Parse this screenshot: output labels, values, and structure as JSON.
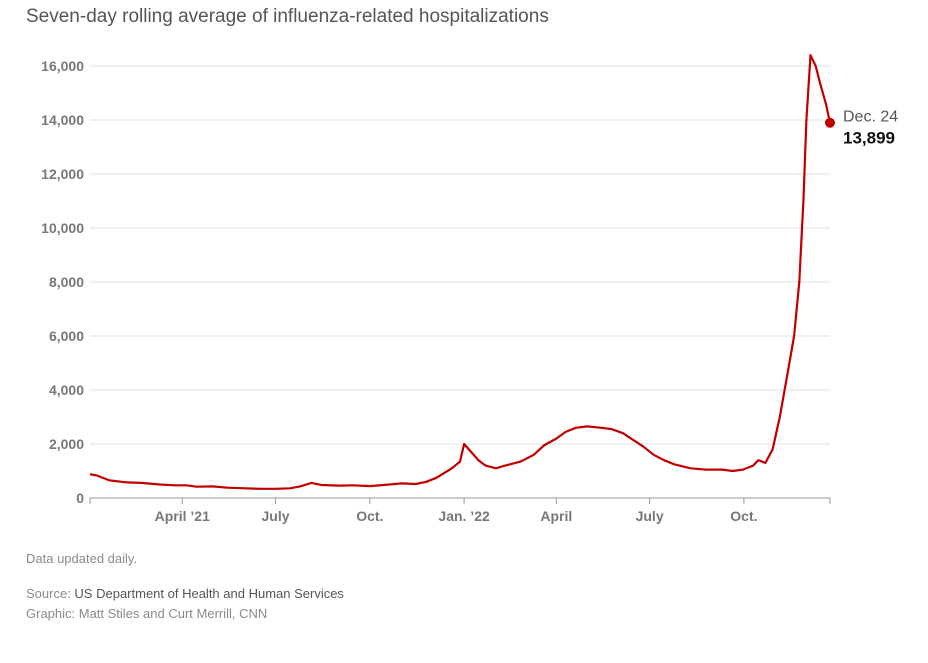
{
  "title": "Seven-day rolling average of influenza-related hospitalizations",
  "annotation": {
    "date": "Dec. 24",
    "value": "13,899"
  },
  "footer": {
    "note": "Data updated daily.",
    "source_label": "Source: ",
    "source_name": "US Department of Health and Human Services",
    "credit": "Graphic: Matt Stiles and Curt Merrill, CNN"
  },
  "colors": {
    "line": "#c00000",
    "grid": "#e2e2e2",
    "axis_text": "#777777"
  },
  "chart_data": {
    "type": "line",
    "title": "Seven-day rolling average of influenza-related hospitalizations",
    "xlabel": "",
    "ylabel": "",
    "ylim": [
      0,
      16000
    ],
    "xlim": [
      "2021-01-01",
      "2022-12-24"
    ],
    "y_ticks": [
      {
        "value": 0,
        "label": "0"
      },
      {
        "value": 2000,
        "label": "2,000"
      },
      {
        "value": 4000,
        "label": "4,000"
      },
      {
        "value": 6000,
        "label": "6,000"
      },
      {
        "value": 8000,
        "label": "8,000"
      },
      {
        "value": 10000,
        "label": "10,000"
      },
      {
        "value": 12000,
        "label": "12,000"
      },
      {
        "value": 14000,
        "label": "14,000"
      },
      {
        "value": 16000,
        "label": "16,000"
      }
    ],
    "x_ticks": [
      {
        "date": "2021-04-01",
        "label": "April ’21"
      },
      {
        "date": "2021-07-01",
        "label": "July"
      },
      {
        "date": "2021-10-01",
        "label": "Oct."
      },
      {
        "date": "2022-01-01",
        "label": "Jan. ’22"
      },
      {
        "date": "2022-04-01",
        "label": "April"
      },
      {
        "date": "2022-07-01",
        "label": "July"
      },
      {
        "date": "2022-10-01",
        "label": "Oct."
      }
    ],
    "grid": "horizontal",
    "series": [
      {
        "points": [
          [
            "2021-01-01",
            880
          ],
          [
            "2021-01-08",
            830
          ],
          [
            "2021-01-20",
            650
          ],
          [
            "2021-02-05",
            580
          ],
          [
            "2021-02-20",
            560
          ],
          [
            "2021-03-10",
            500
          ],
          [
            "2021-03-25",
            470
          ],
          [
            "2021-04-05",
            470
          ],
          [
            "2021-04-15",
            420
          ],
          [
            "2021-05-01",
            430
          ],
          [
            "2021-05-15",
            380
          ],
          [
            "2021-06-01",
            360
          ],
          [
            "2021-06-15",
            340
          ],
          [
            "2021-07-01",
            340
          ],
          [
            "2021-07-15",
            360
          ],
          [
            "2021-07-25",
            430
          ],
          [
            "2021-08-05",
            560
          ],
          [
            "2021-08-15",
            480
          ],
          [
            "2021-09-01",
            460
          ],
          [
            "2021-09-15",
            470
          ],
          [
            "2021-10-01",
            440
          ],
          [
            "2021-10-20",
            500
          ],
          [
            "2021-11-01",
            540
          ],
          [
            "2021-11-15",
            520
          ],
          [
            "2021-11-25",
            600
          ],
          [
            "2021-12-05",
            750
          ],
          [
            "2021-12-20",
            1100
          ],
          [
            "2021-12-28",
            1350
          ],
          [
            "2022-01-01",
            2000
          ],
          [
            "2022-01-08",
            1700
          ],
          [
            "2022-01-15",
            1400
          ],
          [
            "2022-01-22",
            1200
          ],
          [
            "2022-02-01",
            1100
          ],
          [
            "2022-02-10",
            1200
          ],
          [
            "2022-02-25",
            1350
          ],
          [
            "2022-03-10",
            1600
          ],
          [
            "2022-03-20",
            1950
          ],
          [
            "2022-04-01",
            2200
          ],
          [
            "2022-04-10",
            2450
          ],
          [
            "2022-04-20",
            2600
          ],
          [
            "2022-05-01",
            2650
          ],
          [
            "2022-05-15",
            2600
          ],
          [
            "2022-05-25",
            2550
          ],
          [
            "2022-06-05",
            2400
          ],
          [
            "2022-06-15",
            2150
          ],
          [
            "2022-06-25",
            1900
          ],
          [
            "2022-07-05",
            1600
          ],
          [
            "2022-07-15",
            1400
          ],
          [
            "2022-07-25",
            1250
          ],
          [
            "2022-08-10",
            1100
          ],
          [
            "2022-08-25",
            1050
          ],
          [
            "2022-09-10",
            1050
          ],
          [
            "2022-09-20",
            1000
          ],
          [
            "2022-09-30",
            1050
          ],
          [
            "2022-10-10",
            1200
          ],
          [
            "2022-10-15",
            1400
          ],
          [
            "2022-10-22",
            1300
          ],
          [
            "2022-10-29",
            1800
          ],
          [
            "2022-11-05",
            3000
          ],
          [
            "2022-11-12",
            4500
          ],
          [
            "2022-11-19",
            6000
          ],
          [
            "2022-11-24",
            8000
          ],
          [
            "2022-11-28",
            11000
          ],
          [
            "2022-12-01",
            14000
          ],
          [
            "2022-12-05",
            16400
          ],
          [
            "2022-12-10",
            16000
          ],
          [
            "2022-12-14",
            15400
          ],
          [
            "2022-12-20",
            14600
          ],
          [
            "2022-12-24",
            13899
          ]
        ]
      }
    ]
  }
}
